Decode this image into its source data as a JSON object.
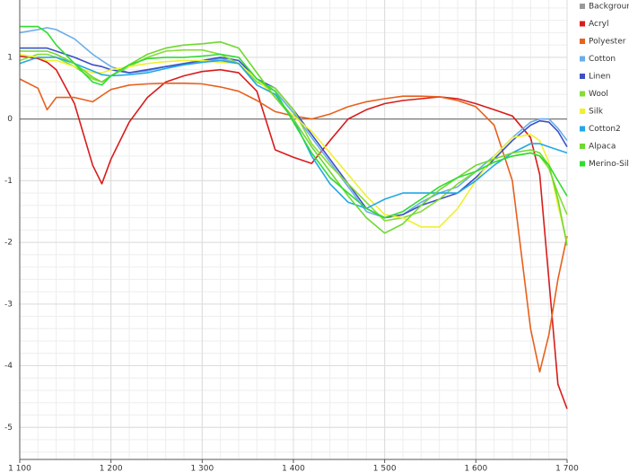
{
  "chart_data": {
    "type": "line",
    "x": [
      1100,
      1120,
      1130,
      1140,
      1160,
      1180,
      1190,
      1200,
      1220,
      1240,
      1260,
      1280,
      1300,
      1320,
      1340,
      1360,
      1380,
      1400,
      1420,
      1440,
      1460,
      1480,
      1500,
      1520,
      1540,
      1560,
      1580,
      1600,
      1620,
      1640,
      1660,
      1670,
      1680,
      1690,
      1700
    ],
    "xlim": [
      1100,
      1700
    ],
    "xticks": [
      {
        "value": 1100,
        "label": "1 100"
      },
      {
        "value": 1200,
        "label": "1 200"
      },
      {
        "value": 1300,
        "label": "1 300"
      },
      {
        "value": 1400,
        "label": "1 400"
      },
      {
        "value": 1500,
        "label": "1 500"
      },
      {
        "value": 1600,
        "label": "1 600"
      },
      {
        "value": 1700,
        "label": "1 700"
      }
    ],
    "ylim": [
      -5.52,
      1.93
    ],
    "yticks": [
      -5,
      -4,
      -3,
      -2,
      -1,
      0,
      1
    ],
    "grid": true,
    "legend": "right",
    "series": [
      {
        "name": "Background",
        "color": "#999999",
        "values": [
          null,
          null,
          null,
          null,
          null,
          null,
          null,
          null,
          null,
          null,
          null,
          null,
          null,
          null,
          null,
          null,
          null,
          null,
          null,
          null,
          null,
          null,
          null,
          null,
          null,
          null,
          null,
          null,
          null,
          null,
          null,
          null,
          null,
          null,
          null
        ]
      },
      {
        "name": "Acryl",
        "color": "#d81c1c",
        "values": [
          1.02,
          0.98,
          0.92,
          0.8,
          0.25,
          -0.75,
          -1.05,
          -0.65,
          -0.05,
          0.35,
          0.6,
          0.7,
          0.77,
          0.8,
          0.75,
          0.45,
          -0.5,
          -0.62,
          -0.72,
          -0.35,
          0,
          0.15,
          0.25,
          0.3,
          0.33,
          0.36,
          0.33,
          0.25,
          0.15,
          0.05,
          -0.3,
          -0.9,
          -2.6,
          -4.3,
          -4.7
        ]
      },
      {
        "name": "Polyester",
        "color": "#e8601c",
        "values": [
          0.65,
          0.5,
          0.15,
          0.35,
          0.35,
          0.28,
          0.38,
          0.48,
          0.55,
          0.57,
          0.58,
          0.58,
          0.57,
          0.52,
          0.45,
          0.3,
          0.12,
          0.05,
          0,
          0.08,
          0.2,
          0.28,
          0.33,
          0.37,
          0.37,
          0.36,
          0.3,
          0.2,
          -0.1,
          -1.0,
          -3.4,
          -4.1,
          -3.5,
          -2.6,
          -1.9
        ]
      },
      {
        "name": "Cotton",
        "color": "#6aaee8",
        "values": [
          1.4,
          1.45,
          1.48,
          1.45,
          1.3,
          1.05,
          0.95,
          0.85,
          0.75,
          0.78,
          0.85,
          0.88,
          0.92,
          0.98,
          0.9,
          0.6,
          0.45,
          0.1,
          -0.3,
          -0.7,
          -1.1,
          -1.5,
          -1.6,
          -1.55,
          -1.35,
          -1.2,
          -1.1,
          -0.85,
          -0.6,
          -0.3,
          -0.05,
          0,
          0,
          -0.15,
          -0.35
        ]
      },
      {
        "name": "Linen",
        "color": "#3c50c8",
        "values": [
          1.15,
          1.15,
          1.15,
          1.1,
          1.0,
          0.88,
          0.85,
          0.8,
          0.75,
          0.8,
          0.85,
          0.9,
          0.95,
          1.0,
          0.95,
          0.65,
          0.5,
          0.15,
          -0.25,
          -0.65,
          -1.05,
          -1.45,
          -1.6,
          -1.55,
          -1.4,
          -1.3,
          -1.2,
          -0.95,
          -0.65,
          -0.35,
          -0.1,
          -0.03,
          -0.05,
          -0.2,
          -0.45
        ]
      },
      {
        "name": "Wool",
        "color": "#86dc34",
        "values": [
          0.95,
          1.05,
          1.05,
          1.0,
          0.85,
          0.65,
          0.6,
          0.7,
          0.85,
          1.0,
          1.1,
          1.12,
          1.12,
          1.05,
          0.9,
          0.6,
          0.5,
          0.15,
          -0.4,
          -0.75,
          -1.05,
          -1.35,
          -1.65,
          -1.6,
          -1.5,
          -1.3,
          -1.05,
          -0.85,
          -0.7,
          -0.6,
          -0.55,
          -0.6,
          -0.8,
          -1.2,
          -1.55
        ]
      },
      {
        "name": "Silk",
        "color": "#f0f030",
        "values": [
          1.05,
          1.0,
          0.95,
          0.95,
          0.85,
          0.75,
          0.75,
          0.8,
          0.85,
          0.9,
          0.93,
          0.95,
          0.95,
          0.92,
          0.9,
          0.65,
          0.35,
          0.05,
          -0.2,
          -0.55,
          -0.9,
          -1.25,
          -1.55,
          -1.6,
          -1.75,
          -1.75,
          -1.45,
          -1.0,
          -0.6,
          -0.3,
          -0.25,
          -0.35,
          -0.7,
          -1.4,
          -2.0
        ]
      },
      {
        "name": "Cotton2",
        "color": "#22a8e6",
        "values": [
          0.9,
          1.0,
          1.0,
          1.0,
          0.9,
          0.78,
          0.72,
          0.7,
          0.72,
          0.75,
          0.82,
          0.88,
          0.92,
          0.95,
          0.9,
          0.55,
          0.4,
          0.0,
          -0.6,
          -1.05,
          -1.35,
          -1.45,
          -1.3,
          -1.2,
          -1.2,
          -1.2,
          -1.2,
          -1.0,
          -0.75,
          -0.55,
          -0.4,
          -0.4,
          -0.45,
          -0.5,
          -0.55
        ]
      },
      {
        "name": "Alpaca",
        "color": "#70d830",
        "values": [
          1.1,
          1.1,
          1.1,
          1.05,
          0.9,
          0.68,
          0.6,
          0.7,
          0.88,
          1.05,
          1.15,
          1.2,
          1.22,
          1.25,
          1.15,
          0.75,
          0.35,
          0.0,
          -0.45,
          -0.85,
          -1.25,
          -1.6,
          -1.85,
          -1.7,
          -1.4,
          -1.15,
          -0.95,
          -0.75,
          -0.65,
          -0.55,
          -0.5,
          -0.55,
          -0.75,
          -1.3,
          -2.05
        ]
      },
      {
        "name": "Merino-Silk",
        "color": "#30dc30",
        "values": [
          1.5,
          1.5,
          1.4,
          1.2,
          0.9,
          0.6,
          0.55,
          0.7,
          0.88,
          0.98,
          1.0,
          1.0,
          1.02,
          1.05,
          1.0,
          0.65,
          0.45,
          -0.05,
          -0.55,
          -0.95,
          -1.2,
          -1.45,
          -1.6,
          -1.5,
          -1.3,
          -1.1,
          -0.95,
          -0.85,
          -0.7,
          -0.6,
          -0.55,
          -0.6,
          -0.75,
          -1.0,
          -1.25
        ]
      }
    ]
  }
}
